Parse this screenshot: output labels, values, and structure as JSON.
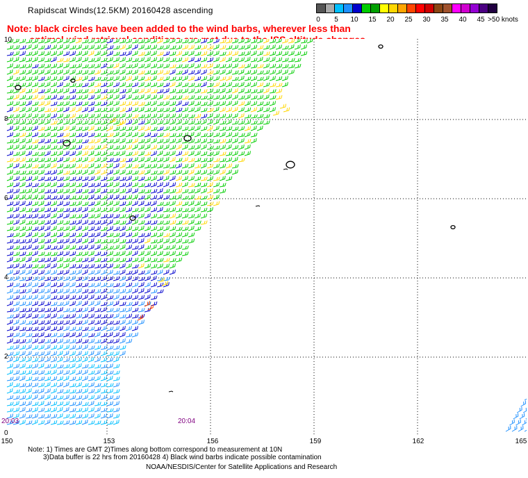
{
  "title": "Rapidscat Winds(12.5KM) 20160428 ascending",
  "note": {
    "line1": "Note: black circles have been added to the wind barbs, wherever less than",
    "line2": "optimal wind retrieval conditions are met due to the ISS altitude changes."
  },
  "scale": {
    "segments": [
      {
        "label": "0",
        "color": "#555555"
      },
      {
        "label": "",
        "color": "#aaaaaa"
      },
      {
        "label": "5",
        "color": "#00bfff"
      },
      {
        "label": "",
        "color": "#1e90ff"
      },
      {
        "label": "10",
        "color": "#0000cd"
      },
      {
        "label": "",
        "color": "#00cd00"
      },
      {
        "label": "15",
        "color": "#00a000"
      },
      {
        "label": "",
        "color": "#ffff00"
      },
      {
        "label": "20",
        "color": "#ffd700"
      },
      {
        "label": "",
        "color": "#ffa500"
      },
      {
        "label": "25",
        "color": "#ff4500"
      },
      {
        "label": "",
        "color": "#ff0000"
      },
      {
        "label": "30",
        "color": "#d00000"
      },
      {
        "label": "",
        "color": "#8b4513"
      },
      {
        "label": "35",
        "color": "#a0522d"
      },
      {
        "label": "",
        "color": "#ff00ff"
      },
      {
        "label": "40",
        "color": "#d000d0"
      },
      {
        "label": "",
        "color": "#9400d3"
      },
      {
        "label": "45",
        "color": "#4b0082"
      },
      {
        "label": ">50 knots",
        "color": "#200040"
      }
    ]
  },
  "map": {
    "lat_labels": [
      "10",
      "8",
      "6",
      "4",
      "2",
      "0"
    ],
    "lon_labels": [
      "150",
      "153",
      "156",
      "159",
      "162",
      "165"
    ],
    "time_labels": [
      "20:03",
      "20:04"
    ]
  },
  "footer": {
    "line1": "Note: 1) Times are GMT 2)Times along bottom correspond to measurement at 10N",
    "line2": "3)Data buffer is 22 hrs from 20160428 4) Black wind barbs indicate possible contamination",
    "line3": "NOAA/NESDIS/Center for Satellite Applications and Research"
  }
}
